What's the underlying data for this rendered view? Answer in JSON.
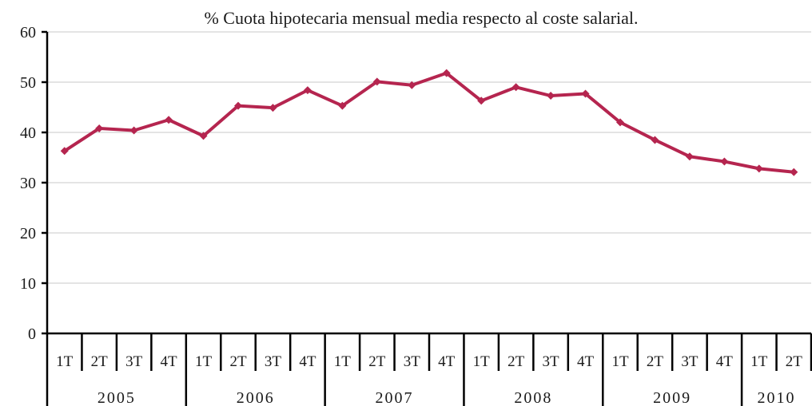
{
  "chart_data": {
    "type": "line",
    "title": "% Cuota hipotecaria mensual media respecto al coste salarial.",
    "xlabel": "",
    "ylabel": "",
    "ylim": [
      0,
      60
    ],
    "yticks": [
      0,
      10,
      20,
      30,
      40,
      50,
      60
    ],
    "grid": true,
    "legend": "none",
    "categories": [
      "1T",
      "2T",
      "3T",
      "4T",
      "1T",
      "2T",
      "3T",
      "4T",
      "1T",
      "2T",
      "3T",
      "4T",
      "1T",
      "2T",
      "3T",
      "4T",
      "1T",
      "2T",
      "3T",
      "4T",
      "1T",
      "2T"
    ],
    "year_groups": [
      {
        "label": "2005",
        "count": 4
      },
      {
        "label": "2006",
        "count": 4
      },
      {
        "label": "2007",
        "count": 4
      },
      {
        "label": "2008",
        "count": 4
      },
      {
        "label": "2009",
        "count": 4
      },
      {
        "label": "2010",
        "count": 2
      }
    ],
    "series": [
      {
        "color": "#b5254f",
        "values": [
          36.3,
          40.8,
          40.4,
          42.5,
          39.3,
          45.3,
          44.9,
          48.4,
          45.3,
          50.1,
          49.4,
          51.8,
          46.3,
          49.0,
          47.3,
          47.7,
          42.0,
          38.5,
          35.2,
          34.2,
          32.8,
          32.1
        ]
      }
    ]
  }
}
